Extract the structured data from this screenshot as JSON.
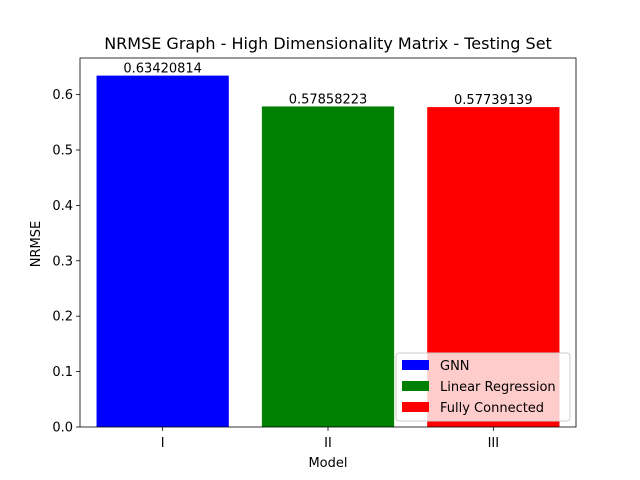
{
  "chart_data": {
    "type": "bar",
    "title": "NRMSE Graph - High Dimensionality Matrix - Testing Set",
    "xlabel": "Model",
    "ylabel": "NRMSE",
    "categories": [
      "I",
      "II",
      "III"
    ],
    "values": [
      0.63420814,
      0.57858223,
      0.57739139
    ],
    "data_labels": [
      "0.63420814",
      "0.57858223",
      "0.57739139"
    ],
    "bar_colors": [
      "#0000ff",
      "#008000",
      "#ff0000"
    ],
    "ylim": [
      0,
      0.666
    ],
    "yticks": [
      0.0,
      0.1,
      0.2,
      0.3,
      0.4,
      0.5,
      0.6
    ],
    "ytick_labels": [
      "0.0",
      "0.1",
      "0.2",
      "0.3",
      "0.4",
      "0.5",
      "0.6"
    ],
    "grid": false,
    "legend": {
      "placement": "lower-right",
      "entries": [
        {
          "label": "GNN",
          "color": "#0000ff"
        },
        {
          "label": "Linear Regression",
          "color": "#008000"
        },
        {
          "label": "Fully Connected",
          "color": "#ff0000"
        }
      ]
    }
  }
}
